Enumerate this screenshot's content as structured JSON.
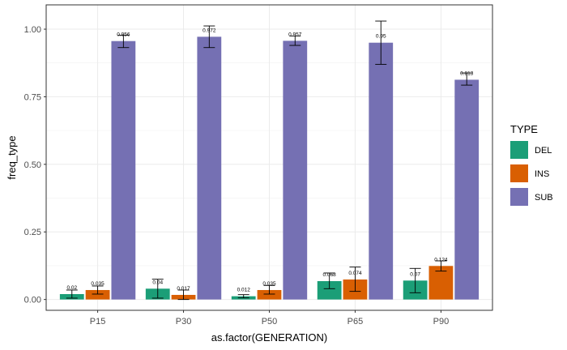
{
  "chart_data": {
    "type": "bar",
    "title": "",
    "xlabel": "as.factor(GENERATION)",
    "ylabel": "freq_type",
    "ylim": [
      -0.04,
      1.09
    ],
    "yticks": [
      0.0,
      0.25,
      0.5,
      0.75,
      1.0
    ],
    "ytick_labels": [
      "0.00",
      "0.25",
      "0.50",
      "0.75",
      "1.00"
    ],
    "categories": [
      "P15",
      "P30",
      "P50",
      "P65",
      "P90"
    ],
    "grid": true,
    "legend_position": "right",
    "legend_title": "TYPE",
    "series": [
      {
        "name": "DEL",
        "color": "#1b9e77",
        "values": [
          0.02,
          0.04,
          0.012,
          0.068,
          0.07
        ],
        "labels": [
          "0.02",
          "0.04",
          "0.012",
          "0.068",
          "0.07"
        ],
        "err_low": [
          0.005,
          0.005,
          0.006,
          0.04,
          0.025
        ],
        "err_high": [
          0.035,
          0.075,
          0.018,
          0.098,
          0.115
        ]
      },
      {
        "name": "INS",
        "color": "#d95f02",
        "values": [
          0.035,
          0.017,
          0.035,
          0.074,
          0.124
        ],
        "labels": [
          "0.035",
          "0.017",
          "0.035",
          "0.074",
          "0.124"
        ],
        "err_low": [
          0.02,
          0.0,
          0.02,
          0.03,
          0.105
        ],
        "err_high": [
          0.05,
          0.035,
          0.052,
          0.12,
          0.143
        ]
      },
      {
        "name": "SUB",
        "color": "#7570b3",
        "values": [
          0.956,
          0.972,
          0.957,
          0.95,
          0.813
        ],
        "labels": [
          "0.956",
          "0.972",
          "0.957",
          "0.95",
          "0.813"
        ],
        "err_low": [
          0.932,
          0.932,
          0.94,
          0.87,
          0.793
        ],
        "err_high": [
          0.978,
          1.012,
          0.975,
          1.03,
          0.838
        ]
      }
    ]
  }
}
